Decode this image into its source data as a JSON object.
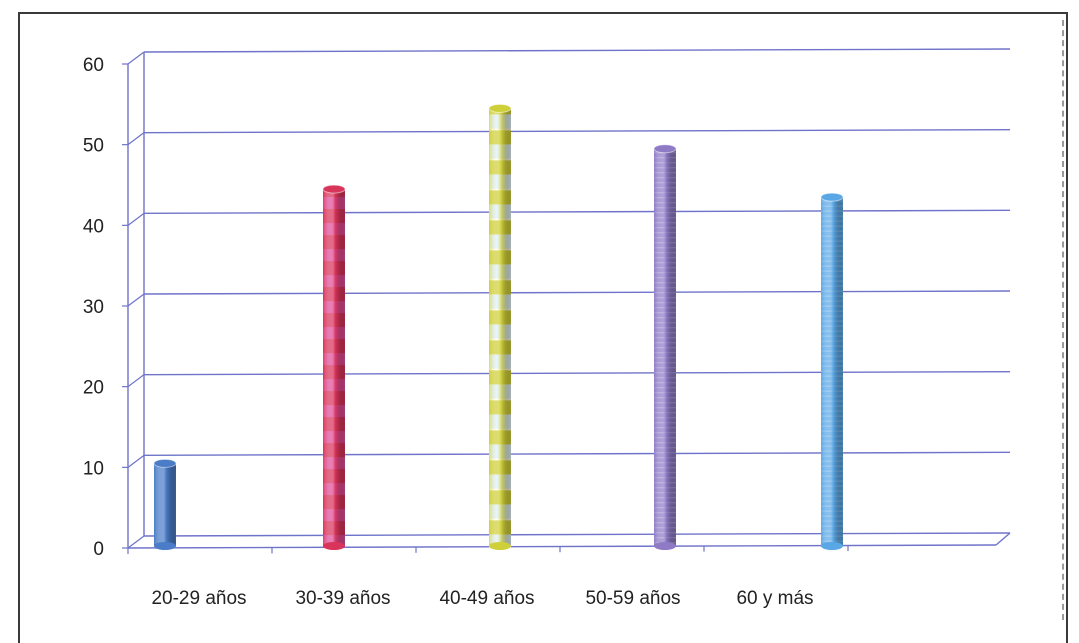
{
  "chart_data": {
    "type": "bar",
    "style": "3d-cylinder",
    "categories": [
      "20-29 años",
      "30-39 años",
      "40-49 años",
      "50-59 años",
      "60 y más"
    ],
    "values": [
      10,
      44,
      54,
      49,
      43
    ],
    "ylim": [
      0,
      60
    ],
    "yticks": [
      0,
      10,
      20,
      30,
      40,
      50,
      60
    ],
    "title": "",
    "xlabel": "",
    "ylabel": "",
    "grid": true,
    "legend": "none",
    "colors": [
      "#4a7cc7",
      "#d9345a",
      "#cfcf3a",
      "#8f7ac6",
      "#5aa7e6"
    ]
  }
}
